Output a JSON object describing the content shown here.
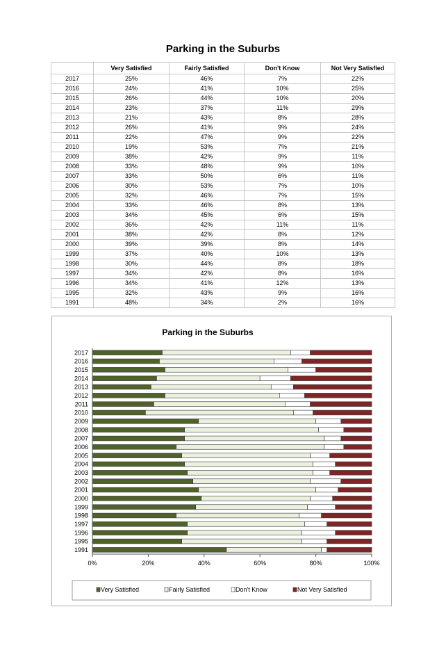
{
  "page": {
    "title": "Parking in the Suburbs"
  },
  "table": {
    "columns": [
      "",
      "Very Satisfied",
      "Fairly Satisfied",
      "Don't Know",
      "Not Very Satisfied"
    ],
    "rows": [
      [
        "2017",
        "25%",
        "46%",
        "7%",
        "22%"
      ],
      [
        "2016",
        "24%",
        "41%",
        "10%",
        "25%"
      ],
      [
        "2015",
        "26%",
        "44%",
        "10%",
        "20%"
      ],
      [
        "2014",
        "23%",
        "37%",
        "11%",
        "29%"
      ],
      [
        "2013",
        "21%",
        "43%",
        "8%",
        "28%"
      ],
      [
        "2012",
        "26%",
        "41%",
        "9%",
        "24%"
      ],
      [
        "2011",
        "22%",
        "47%",
        "9%",
        "22%"
      ],
      [
        "2010",
        "19%",
        "53%",
        "7%",
        "21%"
      ],
      [
        "2009",
        "38%",
        "42%",
        "9%",
        "11%"
      ],
      [
        "2008",
        "33%",
        "48%",
        "9%",
        "10%"
      ],
      [
        "2007",
        "33%",
        "50%",
        "6%",
        "11%"
      ],
      [
        "2006",
        "30%",
        "53%",
        "7%",
        "10%"
      ],
      [
        "2005",
        "32%",
        "46%",
        "7%",
        "15%"
      ],
      [
        "2004",
        "33%",
        "46%",
        "8%",
        "13%"
      ],
      [
        "2003",
        "34%",
        "45%",
        "6%",
        "15%"
      ],
      [
        "2002",
        "36%",
        "42%",
        "11%",
        "11%"
      ],
      [
        "2001",
        "38%",
        "42%",
        "8%",
        "12%"
      ],
      [
        "2000",
        "39%",
        "39%",
        "8%",
        "14%"
      ],
      [
        "1999",
        "37%",
        "40%",
        "10%",
        "13%"
      ],
      [
        "1998",
        "30%",
        "44%",
        "8%",
        "18%"
      ],
      [
        "1997",
        "34%",
        "42%",
        "8%",
        "16%"
      ],
      [
        "1996",
        "34%",
        "41%",
        "12%",
        "13%"
      ],
      [
        "1995",
        "32%",
        "43%",
        "9%",
        "16%"
      ],
      [
        "1991",
        "48%",
        "34%",
        "2%",
        "16%"
      ]
    ]
  },
  "chart_data": {
    "type": "bar",
    "orientation": "horizontal",
    "stacking": "percent",
    "title": "Parking in the Suburbs",
    "categories": [
      "2017",
      "2016",
      "2015",
      "2014",
      "2013",
      "2012",
      "2011",
      "2010",
      "2009",
      "2008",
      "2007",
      "2006",
      "2005",
      "2004",
      "2003",
      "2002",
      "2001",
      "2000",
      "1999",
      "1998",
      "1997",
      "1996",
      "1995",
      "1991"
    ],
    "series": [
      {
        "name": "Very Satisfied",
        "color": "#4f6228",
        "values": [
          25,
          24,
          26,
          23,
          21,
          26,
          22,
          19,
          38,
          33,
          33,
          30,
          32,
          33,
          34,
          36,
          38,
          39,
          37,
          30,
          34,
          34,
          32,
          48
        ]
      },
      {
        "name": "Fairly Satisfied",
        "color": "#ebf1de",
        "values": [
          46,
          41,
          44,
          37,
          43,
          41,
          47,
          53,
          42,
          48,
          50,
          53,
          46,
          46,
          45,
          42,
          42,
          39,
          40,
          44,
          42,
          41,
          43,
          34
        ]
      },
      {
        "name": "Don't Know",
        "color": "#ffffff",
        "values": [
          7,
          10,
          10,
          11,
          8,
          9,
          9,
          7,
          9,
          9,
          6,
          7,
          7,
          8,
          6,
          11,
          8,
          8,
          10,
          8,
          8,
          12,
          9,
          2
        ]
      },
      {
        "name": "Not Very Satisfied",
        "color": "#7f2525",
        "values": [
          22,
          25,
          20,
          29,
          28,
          24,
          22,
          21,
          11,
          10,
          11,
          10,
          15,
          13,
          15,
          11,
          12,
          14,
          13,
          18,
          16,
          13,
          16,
          16
        ]
      }
    ],
    "xlim": [
      0,
      100
    ],
    "xticks": [
      "0%",
      "20%",
      "40%",
      "60%",
      "80%",
      "100%"
    ],
    "legend_position": "bottom",
    "grid": false
  }
}
